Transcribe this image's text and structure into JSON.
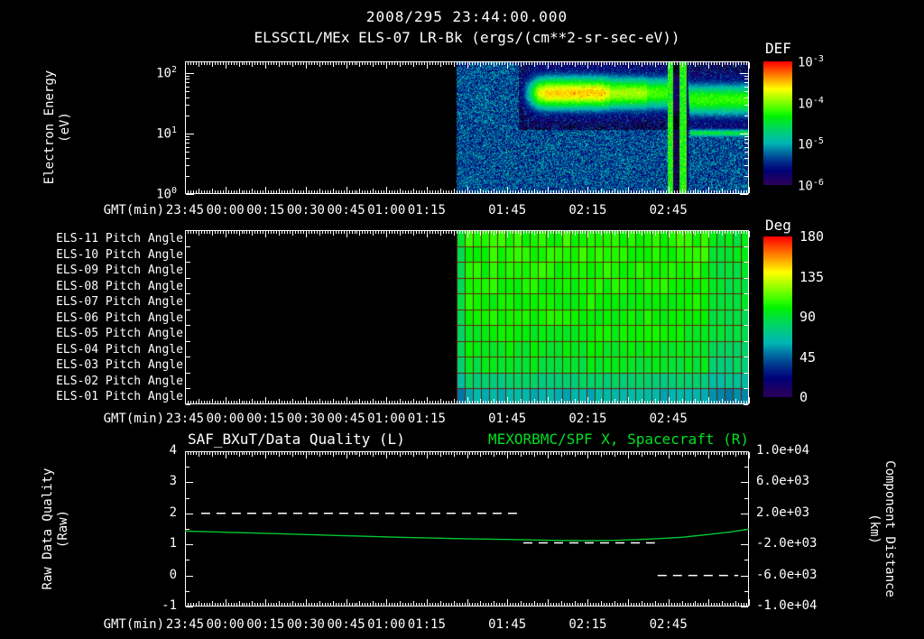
{
  "header": {
    "timestamp": "2008/295 23:44:00.000",
    "subtitle": "ELSSCIL/MEx ELS-07 LR-Bk (ergs/(cm**2-sr-sec-eV))"
  },
  "colors": {
    "background": "#000000",
    "text": "#ffffff",
    "accent_green": "#00e020",
    "grid_red": "#6e1200"
  },
  "time_axis": {
    "label": "GMT(min)",
    "start": "23:45",
    "end": "03:15",
    "total_minutes": 210,
    "labeled_ticks": [
      {
        "minute": 0,
        "label": "23:45"
      },
      {
        "minute": 15,
        "label": "00:00"
      },
      {
        "minute": 30,
        "label": "00:15"
      },
      {
        "minute": 45,
        "label": "00:30"
      },
      {
        "minute": 60,
        "label": "00:45"
      },
      {
        "minute": 75,
        "label": "01:00"
      },
      {
        "minute": 90,
        "label": "01:15"
      },
      {
        "minute": 120,
        "label": "01:45"
      },
      {
        "minute": 150,
        "label": "02:15"
      },
      {
        "minute": 180,
        "label": "02:45"
      }
    ]
  },
  "chart_data": [
    {
      "type": "heatmap",
      "name": "electron-energy-spectrogram",
      "title": "ELSSCIL/MEx ELS-07 LR-Bk",
      "units": "ergs/(cm**2-sr-sec-eV)",
      "ylabel": "Electron Energy",
      "ylabel_units": "(eV)",
      "y_scale": "log",
      "y_range_log_ev": [
        0,
        2.19
      ],
      "y_ticks": [
        {
          "label": "10^2",
          "log": 2
        },
        {
          "label": "10^1",
          "log": 1
        },
        {
          "label": "10^0",
          "log": 0
        }
      ],
      "colorbar": {
        "title": "DEF",
        "scale": "log",
        "range_log_flux": [
          -6,
          -3
        ],
        "ticks": [
          {
            "label": "10^-3",
            "log": -3
          },
          {
            "label": "10^-4",
            "log": -4
          },
          {
            "label": "10^-5",
            "log": -5
          },
          {
            "label": "10^-6",
            "log": -6
          }
        ]
      },
      "data_start_minute": 101,
      "data_end_minute": 210,
      "features": {
        "background_noise": "blue-purple speckle across 1-100 eV starting 01:26",
        "band": {
          "center_log_ev": 1.66,
          "sigma_log": 0.2,
          "start_minute": 124,
          "peak_minutes": [
            134,
            156
          ],
          "end_minute": 210
        },
        "bright_columns_minutes": [
          [
            179.5,
            181.5
          ],
          [
            184,
            186.5
          ]
        ],
        "dark_gap_minutes": [
          181.5,
          184
        ],
        "low_band_after": {
          "start_minute": 188,
          "center_log_ev": 1.0
        }
      }
    },
    {
      "type": "heatmap",
      "name": "pitch-angle-panel",
      "rows": [
        {
          "label": "ELS-11 Pitch Angle",
          "mean_deg": 105
        },
        {
          "label": "ELS-10 Pitch Angle",
          "mean_deg": 104
        },
        {
          "label": "ELS-09 Pitch Angle",
          "mean_deg": 103
        },
        {
          "label": "ELS-08 Pitch Angle",
          "mean_deg": 102
        },
        {
          "label": "ELS-07 Pitch Angle",
          "mean_deg": 101
        },
        {
          "label": "ELS-06 Pitch Angle",
          "mean_deg": 100
        },
        {
          "label": "ELS-05 Pitch Angle",
          "mean_deg": 98
        },
        {
          "label": "ELS-04 Pitch Angle",
          "mean_deg": 96
        },
        {
          "label": "ELS-03 Pitch Angle",
          "mean_deg": 92
        },
        {
          "label": "ELS-02 Pitch Angle",
          "mean_deg": 78
        },
        {
          "label": "ELS-01 Pitch Angle",
          "mean_deg": 62
        }
      ],
      "colorbar": {
        "title": "Deg",
        "range": [
          0,
          180
        ],
        "ticks": [
          180,
          135,
          90,
          45,
          0
        ]
      },
      "data_start_minute": 101,
      "data_end_minute": 210,
      "cell_minutes": 3
    },
    {
      "type": "line",
      "name": "quality-and-spacecraft-distance",
      "title_left": "SAF_BXuT/Data Quality (L)",
      "title_right": "MEXORBMC/SPF X, Spacecraft (R)",
      "ylabel_left": "Raw Data Quality",
      "ylabel_left_units": "(Raw)",
      "ylabel_right": "Component Distance",
      "ylabel_right_units": "(km)",
      "y_left": {
        "range": [
          -1,
          4
        ],
        "ticks": [
          4,
          3,
          2,
          1,
          0,
          -1
        ]
      },
      "y_right": {
        "range": [
          -10000,
          10000
        ],
        "ticks": [
          {
            "label": "1.0e+04",
            "value": 10000
          },
          {
            "label": "6.0e+03",
            "value": 6000
          },
          {
            "label": "2.0e+03",
            "value": 2000
          },
          {
            "label": "-2.0e+03",
            "value": -2000
          },
          {
            "label": "-6.0e+03",
            "value": -6000
          },
          {
            "label": "-1.0e+04",
            "value": -10000
          }
        ]
      },
      "series": [
        {
          "name": "Raw Data Quality",
          "axis": "left",
          "color": "#ffffff",
          "style": "dashed",
          "segments": [
            {
              "value": 2,
              "start_minute": 6,
              "end_minute": 124
            },
            {
              "value": 1.05,
              "start_minute": 126,
              "end_minute": 175
            },
            {
              "value": 0,
              "start_minute": 176,
              "end_minute": 206
            }
          ]
        },
        {
          "name": "Spacecraft X",
          "axis": "left-equivalent",
          "color": "#00c832",
          "style": "solid",
          "points_minute_value": [
            [
              0,
              1.43
            ],
            [
              20,
              1.38
            ],
            [
              40,
              1.33
            ],
            [
              60,
              1.28
            ],
            [
              80,
              1.23
            ],
            [
              100,
              1.19
            ],
            [
              120,
              1.16
            ],
            [
              135,
              1.135
            ],
            [
              150,
              1.12
            ],
            [
              160,
              1.13
            ],
            [
              172,
              1.17
            ],
            [
              185,
              1.23
            ],
            [
              195,
              1.32
            ],
            [
              203,
              1.4
            ],
            [
              210,
              1.49
            ]
          ]
        }
      ]
    }
  ]
}
